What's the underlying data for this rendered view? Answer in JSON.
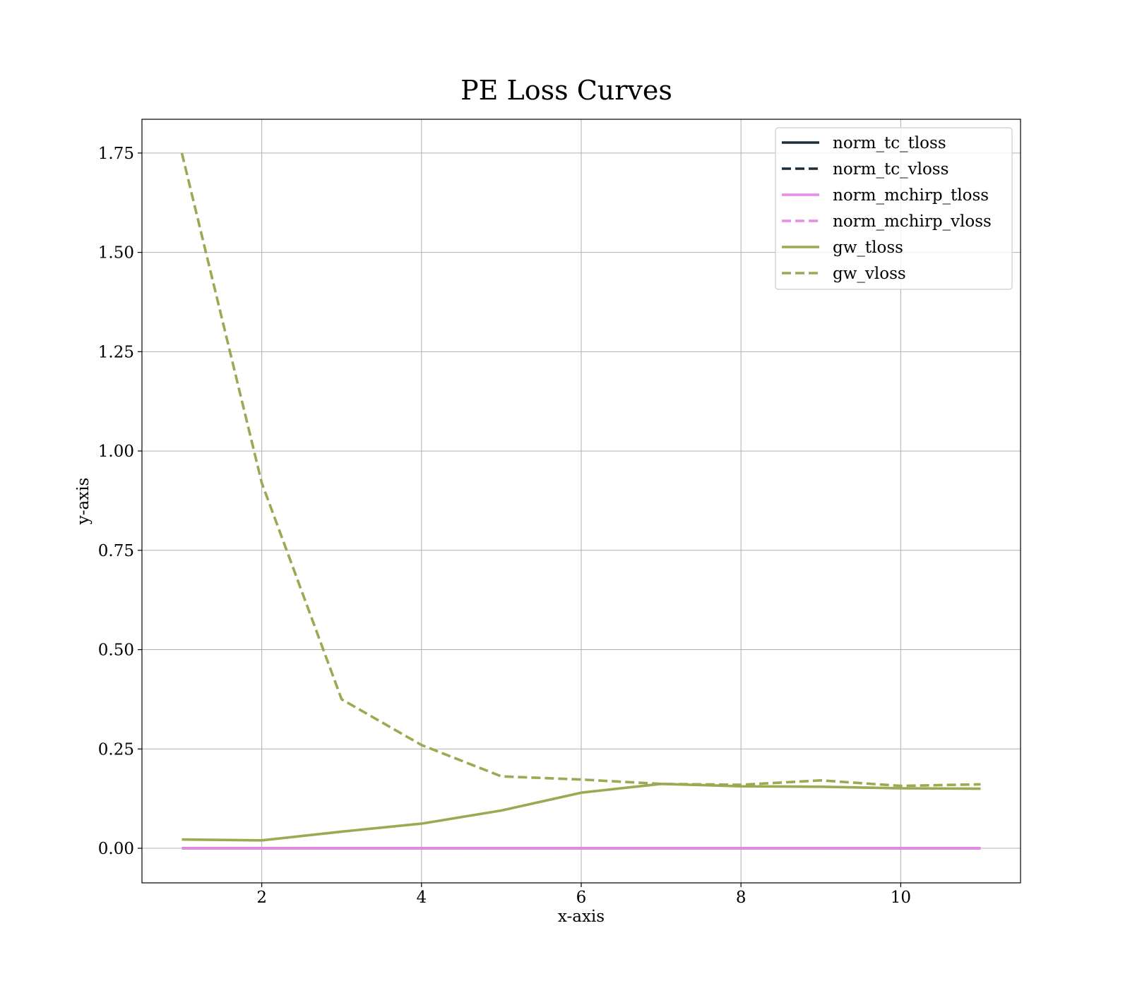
{
  "chart_data": {
    "type": "line",
    "title": "PE Loss Curves",
    "xlabel": "x-axis",
    "ylabel": "y-axis",
    "xlim": [
      0.5,
      11.5
    ],
    "ylim": [
      -0.087,
      1.835
    ],
    "xticks": [
      2,
      4,
      6,
      8,
      10
    ],
    "yticks": [
      0.0,
      0.25,
      0.5,
      0.75,
      1.0,
      1.25,
      1.5,
      1.75
    ],
    "xtick_labels": [
      "2",
      "4",
      "6",
      "8",
      "10"
    ],
    "ytick_labels": [
      "0.00",
      "0.25",
      "0.50",
      "0.75",
      "1.00",
      "1.25",
      "1.50",
      "1.75"
    ],
    "grid": true,
    "legend_position": "top-right",
    "x": [
      1,
      2,
      3,
      4,
      5,
      6,
      7,
      8,
      9,
      10,
      11
    ],
    "series": [
      {
        "name": "norm_tc_tloss",
        "color": "#1c2e3a",
        "dash": "solid",
        "values": [
          0.0,
          0.0,
          0.0,
          0.0,
          0.0,
          0.0,
          0.0,
          0.0,
          0.0,
          0.0,
          0.0
        ]
      },
      {
        "name": "norm_tc_vloss",
        "color": "#1c2e3a",
        "dash": "dashed",
        "values": [
          0.0,
          0.0,
          0.0,
          0.0,
          0.0,
          0.0,
          0.0,
          0.0,
          0.0,
          0.0,
          0.0
        ]
      },
      {
        "name": "norm_mchirp_tloss",
        "color": "#e88ae6",
        "dash": "solid",
        "values": [
          0.0,
          0.0,
          0.0,
          0.0,
          0.0,
          0.0,
          0.0,
          0.0,
          0.0,
          0.0,
          0.0
        ]
      },
      {
        "name": "norm_mchirp_vloss",
        "color": "#e88ae6",
        "dash": "dashed",
        "values": [
          0.0,
          0.0,
          0.0,
          0.0,
          0.0,
          0.0,
          0.0,
          0.0,
          0.0,
          0.0,
          0.0
        ]
      },
      {
        "name": "gw_tloss",
        "color": "#9aa952",
        "dash": "solid",
        "values": [
          0.022,
          0.02,
          0.042,
          0.062,
          0.095,
          0.14,
          0.162,
          0.156,
          0.155,
          0.151,
          0.15
        ]
      },
      {
        "name": "gw_vloss",
        "color": "#9aa952",
        "dash": "dashed",
        "values": [
          1.75,
          0.92,
          0.375,
          0.26,
          0.181,
          0.173,
          0.162,
          0.16,
          0.171,
          0.157,
          0.161
        ]
      }
    ]
  }
}
